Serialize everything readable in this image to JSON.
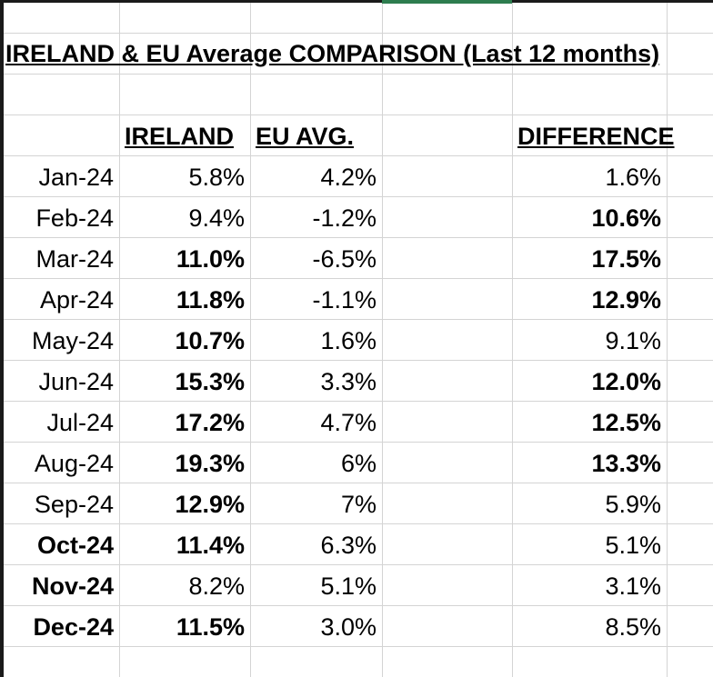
{
  "sheet": {
    "title": "IRELAND & EU Average COMPARISON (Last 12 months)",
    "headers": {
      "ireland": "IRELAND",
      "eu_avg": "EU AVG.",
      "difference": "DIFFERENCE"
    },
    "rows": [
      {
        "month": "Jan-24",
        "ireland": "5.8%",
        "eu": "4.2%",
        "diff": "1.6%",
        "month_bold": false,
        "ireland_bold": false,
        "diff_bold": false
      },
      {
        "month": "Feb-24",
        "ireland": "9.4%",
        "eu": "-1.2%",
        "diff": "10.6%",
        "month_bold": false,
        "ireland_bold": false,
        "diff_bold": true
      },
      {
        "month": "Mar-24",
        "ireland": "11.0%",
        "eu": "-6.5%",
        "diff": "17.5%",
        "month_bold": false,
        "ireland_bold": true,
        "diff_bold": true
      },
      {
        "month": "Apr-24",
        "ireland": "11.8%",
        "eu": "-1.1%",
        "diff": "12.9%",
        "month_bold": false,
        "ireland_bold": true,
        "diff_bold": true
      },
      {
        "month": "May-24",
        "ireland": "10.7%",
        "eu": "1.6%",
        "diff": "9.1%",
        "month_bold": false,
        "ireland_bold": true,
        "diff_bold": false
      },
      {
        "month": "Jun-24",
        "ireland": "15.3%",
        "eu": "3.3%",
        "diff": "12.0%",
        "month_bold": false,
        "ireland_bold": true,
        "diff_bold": true
      },
      {
        "month": "Jul-24",
        "ireland": "17.2%",
        "eu": "4.7%",
        "diff": "12.5%",
        "month_bold": false,
        "ireland_bold": true,
        "diff_bold": true
      },
      {
        "month": "Aug-24",
        "ireland": "19.3%",
        "eu": "6%",
        "diff": "13.3%",
        "month_bold": false,
        "ireland_bold": true,
        "diff_bold": true
      },
      {
        "month": "Sep-24",
        "ireland": "12.9%",
        "eu": "7%",
        "diff": "5.9%",
        "month_bold": false,
        "ireland_bold": true,
        "diff_bold": false
      },
      {
        "month": "Oct-24",
        "ireland": "11.4%",
        "eu": "6.3%",
        "diff": "5.1%",
        "month_bold": true,
        "ireland_bold": true,
        "diff_bold": false
      },
      {
        "month": "Nov-24",
        "ireland": "8.2%",
        "eu": "5.1%",
        "diff": "3.1%",
        "month_bold": true,
        "ireland_bold": false,
        "diff_bold": false
      },
      {
        "month": "Dec-24",
        "ireland": "11.5%",
        "eu": "3.0%",
        "diff": "8.5%",
        "month_bold": true,
        "ireland_bold": true,
        "diff_bold": false
      }
    ]
  }
}
